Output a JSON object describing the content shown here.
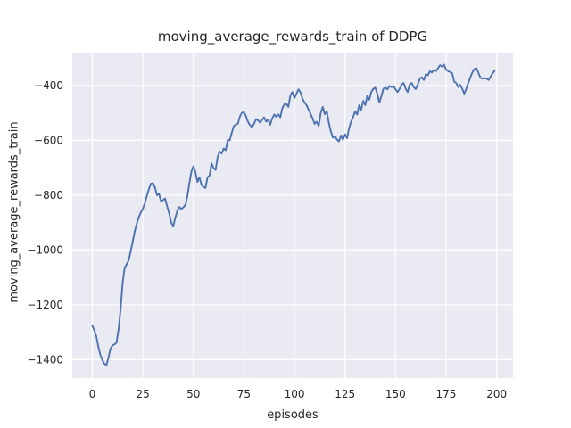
{
  "chart_data": {
    "type": "line",
    "title": "moving_average_rewards_train of DDPG",
    "xlabel": "episodes",
    "ylabel": "moving_average_rewards_train",
    "xlim": [
      -9.9,
      208.1
    ],
    "ylim": [
      -1467,
      -280
    ],
    "xticks": [
      0,
      25,
      50,
      75,
      100,
      125,
      150,
      175,
      200
    ],
    "yticks": [
      -400,
      -600,
      -800,
      -1000,
      -1200,
      -1400
    ],
    "grid": true,
    "legend_position": "none",
    "style": {
      "figure_bg": "#ffffff",
      "axes_bg": "#eaeaf2",
      "grid_color": "#ffffff",
      "line_color": "#4c72b0",
      "text_color": "#262626",
      "line_width": 1.9
    },
    "series": [
      {
        "name": "moving_average_rewards_train",
        "points": [
          [
            0,
            -1275
          ],
          [
            1,
            -1293
          ],
          [
            2,
            -1315
          ],
          [
            3,
            -1352
          ],
          [
            4,
            -1383
          ],
          [
            5,
            -1402
          ],
          [
            6,
            -1415
          ],
          [
            7,
            -1420
          ],
          [
            8,
            -1392
          ],
          [
            9,
            -1360
          ],
          [
            10,
            -1348
          ],
          [
            11,
            -1344
          ],
          [
            12,
            -1338
          ],
          [
            13,
            -1290
          ],
          [
            14,
            -1215
          ],
          [
            15,
            -1122
          ],
          [
            16,
            -1065
          ],
          [
            17,
            -1052
          ],
          [
            18,
            -1038
          ],
          [
            19,
            -1005
          ],
          [
            20,
            -968
          ],
          [
            21,
            -932
          ],
          [
            22,
            -903
          ],
          [
            23,
            -880
          ],
          [
            24,
            -863
          ],
          [
            25,
            -850
          ],
          [
            26,
            -828
          ],
          [
            27,
            -803
          ],
          [
            28,
            -778
          ],
          [
            29,
            -758
          ],
          [
            30,
            -756
          ],
          [
            31,
            -772
          ],
          [
            32,
            -800
          ],
          [
            33,
            -795
          ],
          [
            34,
            -822
          ],
          [
            35,
            -818
          ],
          [
            36,
            -812
          ],
          [
            37,
            -840
          ],
          [
            38,
            -865
          ],
          [
            39,
            -898
          ],
          [
            40,
            -915
          ],
          [
            41,
            -885
          ],
          [
            42,
            -858
          ],
          [
            43,
            -843
          ],
          [
            44,
            -850
          ],
          [
            45,
            -845
          ],
          [
            46,
            -836
          ],
          [
            47,
            -806
          ],
          [
            48,
            -758
          ],
          [
            49,
            -714
          ],
          [
            50,
            -695
          ],
          [
            51,
            -715
          ],
          [
            52,
            -752
          ],
          [
            53,
            -735
          ],
          [
            54,
            -762
          ],
          [
            55,
            -770
          ],
          [
            56,
            -774
          ],
          [
            57,
            -735
          ],
          [
            58,
            -728
          ],
          [
            59,
            -684
          ],
          [
            60,
            -702
          ],
          [
            61,
            -708
          ],
          [
            62,
            -660
          ],
          [
            63,
            -641
          ],
          [
            64,
            -648
          ],
          [
            65,
            -630
          ],
          [
            66,
            -636
          ],
          [
            67,
            -598
          ],
          [
            68,
            -600
          ],
          [
            69,
            -572
          ],
          [
            70,
            -548
          ],
          [
            71,
            -543
          ],
          [
            72,
            -540
          ],
          [
            73,
            -513
          ],
          [
            74,
            -500
          ],
          [
            75,
            -497
          ],
          [
            76,
            -512
          ],
          [
            77,
            -532
          ],
          [
            78,
            -545
          ],
          [
            79,
            -552
          ],
          [
            80,
            -540
          ],
          [
            81,
            -523
          ],
          [
            82,
            -527
          ],
          [
            83,
            -535
          ],
          [
            84,
            -526
          ],
          [
            85,
            -516
          ],
          [
            86,
            -532
          ],
          [
            87,
            -524
          ],
          [
            88,
            -543
          ],
          [
            89,
            -520
          ],
          [
            90,
            -506
          ],
          [
            91,
            -514
          ],
          [
            92,
            -505
          ],
          [
            93,
            -516
          ],
          [
            94,
            -483
          ],
          [
            95,
            -469
          ],
          [
            96,
            -467
          ],
          [
            97,
            -478
          ],
          [
            98,
            -435
          ],
          [
            99,
            -424
          ],
          [
            100,
            -446
          ],
          [
            101,
            -430
          ],
          [
            102,
            -414
          ],
          [
            103,
            -425
          ],
          [
            104,
            -448
          ],
          [
            105,
            -462
          ],
          [
            106,
            -472
          ],
          [
            107,
            -488
          ],
          [
            108,
            -505
          ],
          [
            109,
            -520
          ],
          [
            110,
            -540
          ],
          [
            111,
            -532
          ],
          [
            112,
            -548
          ],
          [
            113,
            -500
          ],
          [
            114,
            -478
          ],
          [
            115,
            -505
          ],
          [
            116,
            -494
          ],
          [
            117,
            -537
          ],
          [
            118,
            -567
          ],
          [
            119,
            -590
          ],
          [
            120,
            -585
          ],
          [
            121,
            -597
          ],
          [
            122,
            -604
          ],
          [
            123,
            -582
          ],
          [
            124,
            -598
          ],
          [
            125,
            -578
          ],
          [
            126,
            -592
          ],
          [
            127,
            -556
          ],
          [
            128,
            -532
          ],
          [
            129,
            -515
          ],
          [
            130,
            -494
          ],
          [
            131,
            -506
          ],
          [
            132,
            -472
          ],
          [
            133,
            -489
          ],
          [
            134,
            -456
          ],
          [
            135,
            -472
          ],
          [
            136,
            -438
          ],
          [
            137,
            -452
          ],
          [
            138,
            -424
          ],
          [
            139,
            -412
          ],
          [
            140,
            -408
          ],
          [
            141,
            -430
          ],
          [
            142,
            -462
          ],
          [
            143,
            -438
          ],
          [
            144,
            -412
          ],
          [
            145,
            -408
          ],
          [
            146,
            -414
          ],
          [
            147,
            -402
          ],
          [
            148,
            -406
          ],
          [
            149,
            -402
          ],
          [
            150,
            -414
          ],
          [
            151,
            -424
          ],
          [
            152,
            -412
          ],
          [
            153,
            -397
          ],
          [
            154,
            -391
          ],
          [
            155,
            -412
          ],
          [
            156,
            -424
          ],
          [
            157,
            -397
          ],
          [
            158,
            -391
          ],
          [
            159,
            -406
          ],
          [
            160,
            -413
          ],
          [
            161,
            -396
          ],
          [
            162,
            -375
          ],
          [
            163,
            -370
          ],
          [
            164,
            -380
          ],
          [
            165,
            -359
          ],
          [
            166,
            -363
          ],
          [
            167,
            -348
          ],
          [
            168,
            -353
          ],
          [
            169,
            -343
          ],
          [
            170,
            -347
          ],
          [
            171,
            -337
          ],
          [
            172,
            -326
          ],
          [
            173,
            -331
          ],
          [
            174,
            -324
          ],
          [
            175,
            -342
          ],
          [
            176,
            -348
          ],
          [
            177,
            -351
          ],
          [
            178,
            -355
          ],
          [
            179,
            -386
          ],
          [
            180,
            -391
          ],
          [
            181,
            -406
          ],
          [
            182,
            -398
          ],
          [
            183,
            -412
          ],
          [
            184,
            -430
          ],
          [
            185,
            -412
          ],
          [
            186,
            -391
          ],
          [
            187,
            -370
          ],
          [
            188,
            -352
          ],
          [
            189,
            -340
          ],
          [
            190,
            -337
          ],
          [
            191,
            -354
          ],
          [
            192,
            -372
          ],
          [
            193,
            -375
          ],
          [
            194,
            -373
          ],
          [
            195,
            -375
          ],
          [
            196,
            -380
          ],
          [
            197,
            -368
          ],
          [
            198,
            -356
          ],
          [
            199,
            -346
          ]
        ]
      }
    ]
  }
}
